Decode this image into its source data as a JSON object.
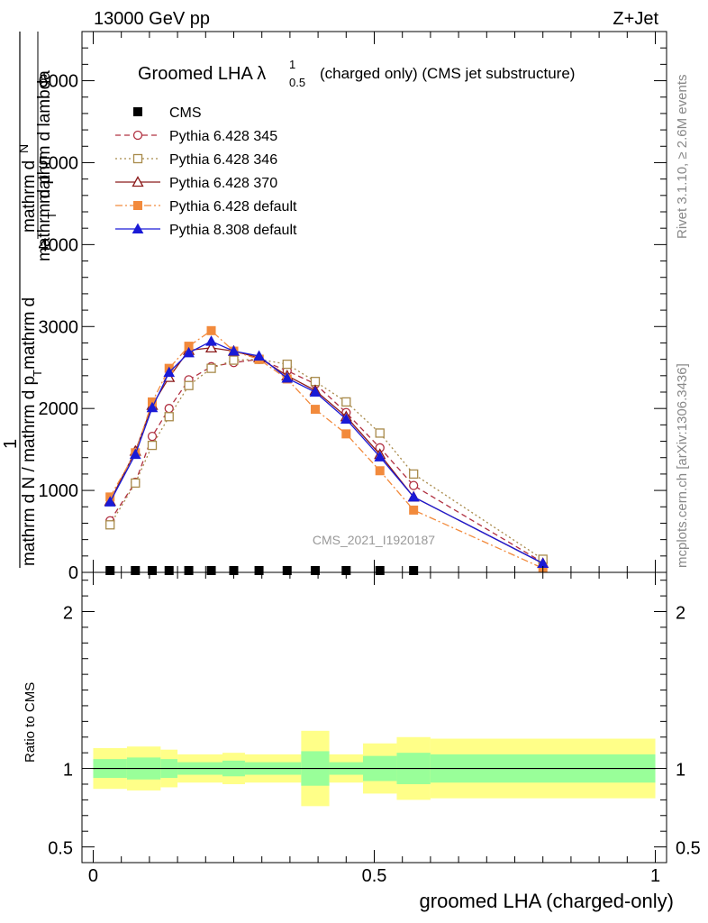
{
  "header": {
    "left": "13000 GeV pp",
    "right": "Z+Jet"
  },
  "side_labels": {
    "rivet": "Rivet 3.1.10, ≥ 2.6M events",
    "mcplots": "mcplots.cern.ch [arXiv:1306.3436]"
  },
  "watermark": "CMS_2021_I1920187",
  "chart_data": [
    {
      "type": "line",
      "title_main": "Groomed LHA λ",
      "title_sup": "1",
      "title_sub": "0.5",
      "title_rest": "(charged only) (CMS jet substructure)",
      "ylabel_line1": "mathrm d",
      "ylabel_N": "N",
      "ylabel_line2": "mathrm d p",
      "ylabel_T": "T",
      "ylabel_line2b": " mathrm d lambda",
      "ylabel_den_line1": "mathrm d",
      "ylabel_den_line2": "mathrm d N / mathrm d p",
      "ylabel_den_T": "T",
      "ylabel_one": "1",
      "xlim": [
        -0.02,
        1.02
      ],
      "ylim": [
        0,
        6600
      ],
      "yticks": [
        {
          "v": 0,
          "label": "0"
        },
        {
          "v": 1000,
          "label": "1000"
        },
        {
          "v": 2000,
          "label": "2000"
        },
        {
          "v": 3000,
          "label": "3000"
        },
        {
          "v": 4000,
          "label": "4000"
        },
        {
          "v": 5000,
          "label": "5000"
        },
        {
          "v": 6000,
          "label": "6000"
        }
      ],
      "legend": [
        {
          "key": "cms",
          "label": "CMS"
        },
        {
          "key": "p345",
          "label": "Pythia 6.428 345"
        },
        {
          "key": "p346",
          "label": "Pythia 6.428 346"
        },
        {
          "key": "p370",
          "label": "Pythia 6.428 370"
        },
        {
          "key": "p6def",
          "label": "Pythia 6.428 default"
        },
        {
          "key": "p8def",
          "label": "Pythia 8.308 default"
        }
      ],
      "series": [
        {
          "key": "cms",
          "color": "#000000",
          "dash": "none",
          "marker": "square-filled",
          "x": [
            0.03,
            0.075,
            0.105,
            0.135,
            0.17,
            0.21,
            0.25,
            0.295,
            0.345,
            0.395,
            0.45,
            0.51,
            0.57
          ],
          "y": [
            3,
            3,
            3,
            3,
            3,
            3,
            3,
            3,
            3,
            3,
            3,
            3,
            3
          ]
        },
        {
          "key": "p345",
          "color": "#b03040",
          "dash": "6,4",
          "marker": "circle-open",
          "x": [
            0.03,
            0.075,
            0.105,
            0.135,
            0.17,
            0.21,
            0.25,
            0.295,
            0.345,
            0.395,
            0.45,
            0.51,
            0.57,
            0.8
          ],
          "y": [
            630,
            1100,
            1660,
            2000,
            2350,
            2510,
            2560,
            2600,
            2460,
            2300,
            1950,
            1520,
            1060,
            120
          ]
        },
        {
          "key": "p346",
          "color": "#a88a4a",
          "dash": "2,3",
          "marker": "square-open",
          "x": [
            0.03,
            0.075,
            0.105,
            0.135,
            0.17,
            0.21,
            0.25,
            0.295,
            0.345,
            0.395,
            0.45,
            0.51,
            0.57,
            0.8
          ],
          "y": [
            580,
            1090,
            1550,
            1900,
            2280,
            2490,
            2590,
            2600,
            2540,
            2330,
            2080,
            1700,
            1200,
            160
          ]
        },
        {
          "key": "p370",
          "color": "#8b1a1a",
          "dash": "none",
          "marker": "triangle-open",
          "x": [
            0.03,
            0.075,
            0.105,
            0.135,
            0.17,
            0.21,
            0.25,
            0.295,
            0.345,
            0.395,
            0.45,
            0.51,
            0.57,
            0.8
          ],
          "y": [
            870,
            1480,
            2040,
            2380,
            2710,
            2740,
            2700,
            2620,
            2400,
            2220,
            1900,
            1440,
            920,
            110
          ]
        },
        {
          "key": "p6def",
          "color": "#f28a3c",
          "dash": "8,3,2,3",
          "marker": "square-filled",
          "x": [
            0.03,
            0.075,
            0.105,
            0.135,
            0.17,
            0.21,
            0.25,
            0.295,
            0.345,
            0.395,
            0.45,
            0.51,
            0.57,
            0.8
          ],
          "y": [
            920,
            1460,
            2080,
            2490,
            2760,
            2950,
            2700,
            2600,
            2360,
            1990,
            1690,
            1240,
            760,
            50
          ]
        },
        {
          "key": "p8def",
          "color": "#1a1ad6",
          "dash": "none",
          "marker": "triangle-filled",
          "x": [
            0.03,
            0.075,
            0.105,
            0.135,
            0.17,
            0.21,
            0.25,
            0.295,
            0.345,
            0.395,
            0.45,
            0.51,
            0.57,
            0.8
          ],
          "y": [
            860,
            1440,
            2010,
            2440,
            2680,
            2820,
            2700,
            2640,
            2370,
            2200,
            1870,
            1410,
            920,
            110
          ]
        }
      ]
    },
    {
      "type": "area",
      "ylabel": "Ratio to CMS",
      "xlabel": "groomed LHA (charged-only)",
      "xlim": [
        -0.02,
        1.02
      ],
      "ylim": [
        0.4,
        2.25
      ],
      "yticks": [
        {
          "v": 0.5,
          "label": "0.5"
        },
        {
          "v": 1,
          "label": "1"
        },
        {
          "v": 2,
          "label": "2"
        }
      ],
      "xticks": [
        {
          "v": 0,
          "label": "0"
        },
        {
          "v": 0.5,
          "label": "0.5"
        },
        {
          "v": 1,
          "label": "1"
        }
      ],
      "band_colors": {
        "outer": "#ffff88",
        "inner": "#99ff99",
        "line": "#000000"
      },
      "bins": [
        {
          "lo": 0.0,
          "hi": 0.06,
          "outer": [
            0.87,
            1.13
          ],
          "inner": [
            0.94,
            1.06
          ]
        },
        {
          "lo": 0.06,
          "hi": 0.12,
          "outer": [
            0.86,
            1.14
          ],
          "inner": [
            0.93,
            1.07
          ]
        },
        {
          "lo": 0.12,
          "hi": 0.15,
          "outer": [
            0.88,
            1.12
          ],
          "inner": [
            0.94,
            1.06
          ]
        },
        {
          "lo": 0.15,
          "hi": 0.23,
          "outer": [
            0.91,
            1.09
          ],
          "inner": [
            0.96,
            1.04
          ]
        },
        {
          "lo": 0.23,
          "hi": 0.27,
          "outer": [
            0.9,
            1.1
          ],
          "inner": [
            0.95,
            1.05
          ]
        },
        {
          "lo": 0.27,
          "hi": 0.37,
          "outer": [
            0.91,
            1.09
          ],
          "inner": [
            0.96,
            1.04
          ]
        },
        {
          "lo": 0.37,
          "hi": 0.42,
          "outer": [
            0.76,
            1.24
          ],
          "inner": [
            0.89,
            1.11
          ]
        },
        {
          "lo": 0.42,
          "hi": 0.48,
          "outer": [
            0.91,
            1.09
          ],
          "inner": [
            0.96,
            1.04
          ]
        },
        {
          "lo": 0.48,
          "hi": 0.54,
          "outer": [
            0.84,
            1.16
          ],
          "inner": [
            0.92,
            1.08
          ]
        },
        {
          "lo": 0.54,
          "hi": 0.6,
          "outer": [
            0.8,
            1.2
          ],
          "inner": [
            0.9,
            1.1
          ]
        },
        {
          "lo": 0.6,
          "hi": 1.0,
          "outer": [
            0.81,
            1.19
          ],
          "inner": [
            0.91,
            1.09
          ]
        }
      ],
      "cms_x": [
        0.03,
        0.075,
        0.105,
        0.135,
        0.17,
        0.21,
        0.25,
        0.295,
        0.345,
        0.395,
        0.45,
        0.51,
        0.57
      ]
    }
  ]
}
